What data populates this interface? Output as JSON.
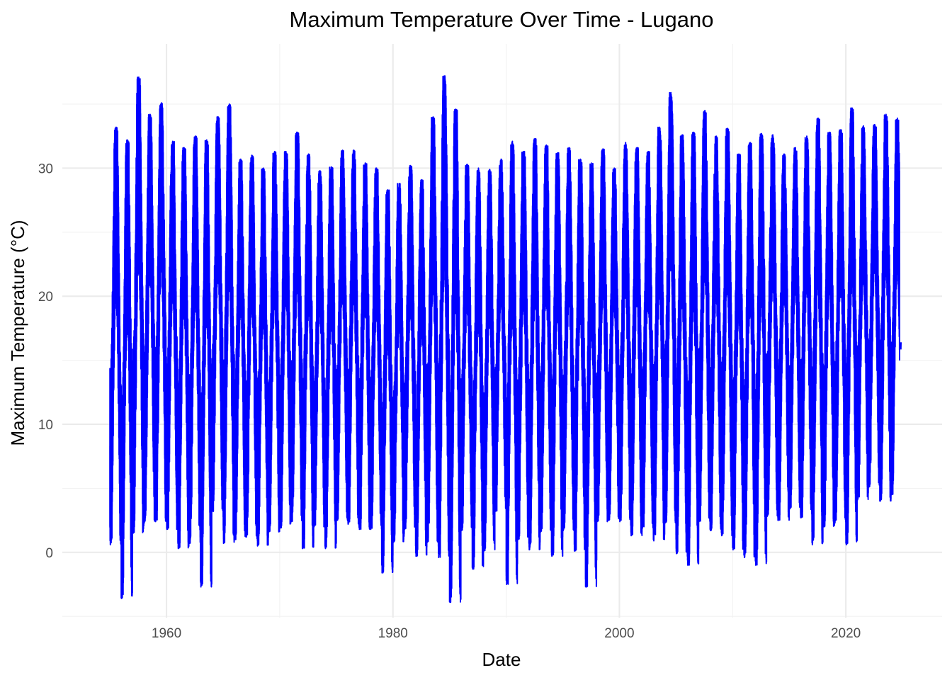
{
  "chart_data": {
    "type": "line",
    "title": "Maximum Temperature Over Time - Lugano",
    "xlabel": "Date",
    "ylabel": "Maximum Temperature (°C)",
    "xlim": [
      1950.8,
      2028.5
    ],
    "ylim": [
      -5.1,
      39.7
    ],
    "x_ticks": [
      {
        "value": 1960,
        "label": "1960"
      },
      {
        "value": 1980,
        "label": "1980"
      },
      {
        "value": 2000,
        "label": "2000"
      },
      {
        "value": 2020,
        "label": "2020"
      }
    ],
    "y_ticks": [
      {
        "value": 0,
        "label": "0"
      },
      {
        "value": 10,
        "label": "10"
      },
      {
        "value": 20,
        "label": "20"
      },
      {
        "value": 30,
        "label": "30"
      }
    ],
    "grid": true,
    "legend": "none",
    "series": [
      {
        "color": "#0000ff",
        "x_start": 1955.0,
        "x_end": 2024.75,
        "years": [
          1955,
          1956,
          1957,
          1958,
          1959,
          1960,
          1961,
          1962,
          1963,
          1964,
          1965,
          1966,
          1967,
          1968,
          1969,
          1970,
          1971,
          1972,
          1973,
          1974,
          1975,
          1976,
          1977,
          1978,
          1979,
          1980,
          1981,
          1982,
          1983,
          1984,
          1985,
          1986,
          1987,
          1988,
          1989,
          1990,
          1991,
          1992,
          1993,
          1994,
          1995,
          1996,
          1997,
          1998,
          1999,
          2000,
          2001,
          2002,
          2003,
          2004,
          2005,
          2006,
          2007,
          2008,
          2009,
          2010,
          2011,
          2012,
          2013,
          2014,
          2015,
          2016,
          2017,
          2018,
          2019,
          2020,
          2021,
          2022,
          2023,
          2024
        ],
        "annual_max": [
          33.2,
          32.2,
          37.1,
          34.2,
          35.1,
          32.1,
          31.6,
          32.5,
          32.2,
          34.0,
          35.0,
          30.7,
          31.0,
          30.0,
          31.3,
          31.3,
          32.8,
          31.1,
          29.8,
          30.1,
          31.4,
          31.4,
          30.4,
          30.0,
          28.3,
          28.8,
          30.2,
          29.1,
          34.0,
          37.2,
          34.6,
          30.3,
          30.0,
          29.9,
          30.7,
          32.1,
          31.3,
          32.3,
          31.8,
          31.2,
          31.6,
          30.7,
          30.4,
          31.5,
          30.0,
          32.0,
          31.6,
          31.3,
          33.2,
          35.9,
          32.6,
          32.8,
          34.5,
          32.5,
          33.1,
          31.1,
          32.0,
          32.7,
          32.6,
          31.1,
          31.6,
          32.5,
          33.9,
          32.8,
          33.0,
          34.7,
          33.3,
          33.4,
          34.2,
          33.9
        ],
        "annual_min": [
          0.6,
          -3.6,
          1.5,
          2.3,
          2.4,
          1.8,
          0.3,
          0.7,
          -2.7,
          3.2,
          0.7,
          1.0,
          1.2,
          0.5,
          1.6,
          1.9,
          2.4,
          0.3,
          2.0,
          0.3,
          2.5,
          2.2,
          1.8,
          1.8,
          -1.6,
          0.8,
          1.8,
          -0.3,
          0.8,
          -0.4,
          -3.9,
          1.7,
          -1.3,
          0.1,
          3.2,
          -2.5,
          1.0,
          0.2,
          1.6,
          -0.3,
          1.7,
          0.1,
          -2.7,
          2.4,
          2.5,
          2.4,
          1.3,
          1.9,
          0.9,
          2.3,
          -0.1,
          -1.0,
          2.4,
          1.7,
          1.3,
          0.2,
          -0.4,
          -1.0,
          2.8,
          2.5,
          3.4,
          2.7,
          0.6,
          2.0,
          2.3,
          0.6,
          4.1,
          5.1,
          4.0,
          4.5
        ],
        "end_segment": [
          15.6,
          16.4
        ]
      }
    ]
  }
}
